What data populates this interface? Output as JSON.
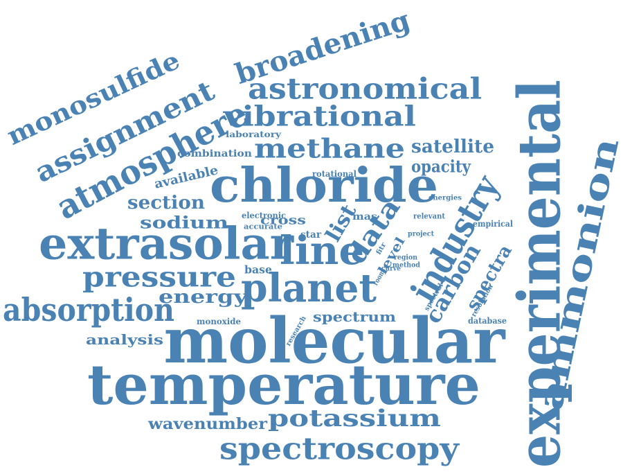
{
  "cloud": {
    "color": "#4a82b4",
    "words": [
      {
        "text": "molecular"
      },
      {
        "text": "temperature"
      },
      {
        "text": "experimental"
      },
      {
        "text": "chloride"
      },
      {
        "text": "extrasolar"
      },
      {
        "text": "ammonion"
      },
      {
        "text": "planet"
      },
      {
        "text": "line"
      },
      {
        "text": "industry"
      },
      {
        "text": "absorption"
      },
      {
        "text": "spectroscopy"
      },
      {
        "text": "atmosphere"
      },
      {
        "text": "pressure"
      },
      {
        "text": "astronomical"
      },
      {
        "text": "assignment"
      },
      {
        "text": "broadening"
      },
      {
        "text": "monosulfide"
      },
      {
        "text": "vibrational"
      },
      {
        "text": "methane"
      },
      {
        "text": "potassium"
      },
      {
        "text": "data"
      },
      {
        "text": "carbon"
      },
      {
        "text": "energy"
      },
      {
        "text": "sodium"
      },
      {
        "text": "section"
      },
      {
        "text": "satellite"
      },
      {
        "text": "opacity"
      },
      {
        "text": "spectra"
      },
      {
        "text": "list"
      },
      {
        "text": "wavenumber"
      },
      {
        "text": "analysis"
      },
      {
        "text": "spectrum"
      },
      {
        "text": "available"
      },
      {
        "text": "cross"
      },
      {
        "text": "combination"
      },
      {
        "text": "base"
      },
      {
        "text": "laboratory"
      },
      {
        "text": "star"
      },
      {
        "text": "level"
      },
      {
        "text": "mas"
      },
      {
        "text": "empirical"
      },
      {
        "text": "monoxide"
      },
      {
        "text": "rotational"
      },
      {
        "text": "electronic"
      },
      {
        "text": "accurate"
      },
      {
        "text": "energies"
      },
      {
        "text": "relevant"
      },
      {
        "text": "project"
      },
      {
        "text": "database"
      },
      {
        "text": "resolution"
      },
      {
        "text": "method"
      },
      {
        "text": "region"
      },
      {
        "text": "curve"
      },
      {
        "text": "room"
      },
      {
        "text": "fitr"
      },
      {
        "text": "spectral"
      },
      {
        "text": "research"
      }
    ]
  }
}
